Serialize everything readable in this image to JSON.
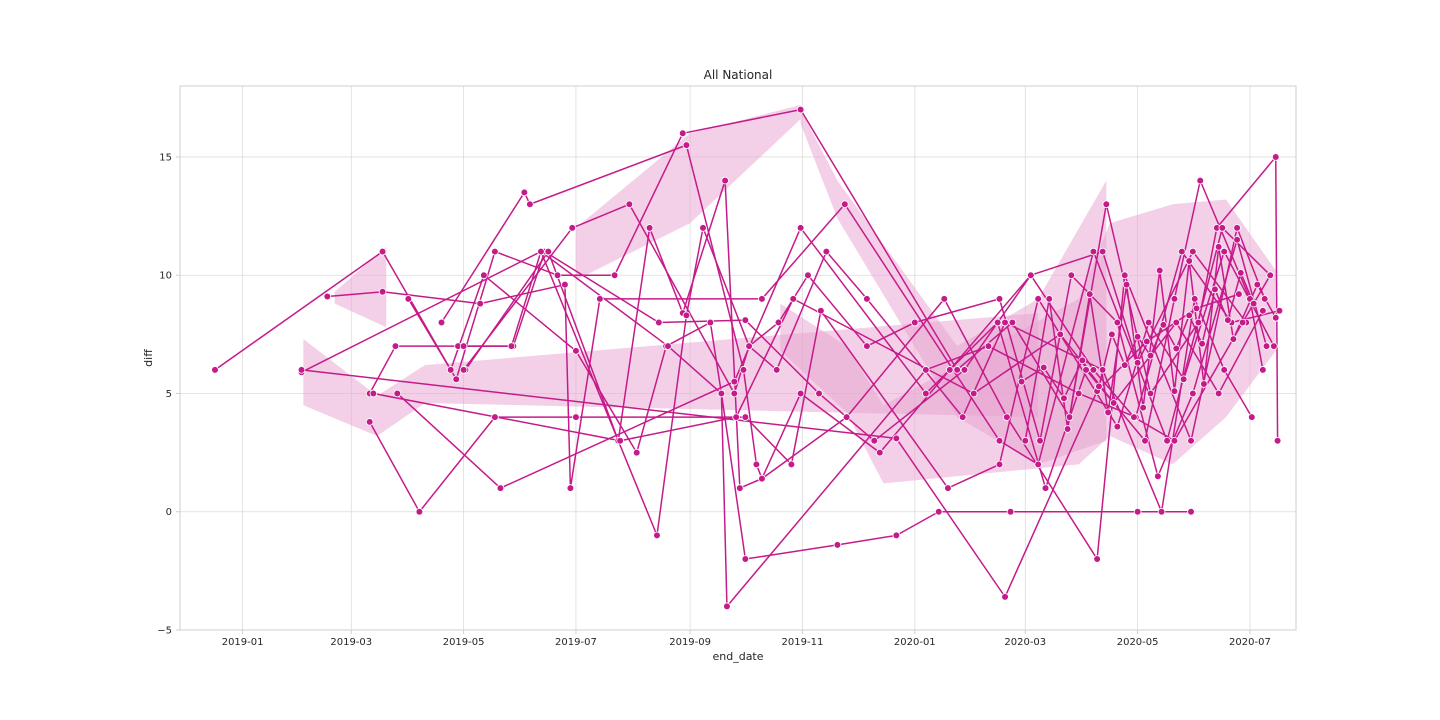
{
  "chart_data": {
    "type": "line",
    "title": "All National",
    "xlabel": "end_date",
    "ylabel": "diff",
    "x_type": "date",
    "xlim": [
      "2018-11-28",
      "2020-07-26"
    ],
    "ylim": [
      -5,
      18
    ],
    "x_ticks": [
      "2019-01-01",
      "2019-03-01",
      "2019-05-01",
      "2019-07-01",
      "2019-09-01",
      "2019-11-01",
      "2020-01-01",
      "2020-03-01",
      "2020-05-01",
      "2020-07-01"
    ],
    "x_tick_labels": [
      "2019-01",
      "2019-03",
      "2019-05",
      "2019-07",
      "2019-09",
      "2019-11",
      "2020-01",
      "2020-03",
      "2020-05",
      "2020-07"
    ],
    "y_ticks": [
      -5,
      0,
      5,
      10,
      15
    ],
    "y_tick_labels": [
      "−5",
      "0",
      "5",
      "10",
      "15"
    ],
    "grid": true,
    "legend": "none",
    "line_color": "#c51b8a",
    "band_color": "#e7a1cf",
    "series": [
      {
        "style": "line-with-markers",
        "points": [
          [
            "2018-12-17",
            6
          ],
          [
            "2019-03-18",
            11
          ],
          [
            "2019-04-27",
            5.6
          ],
          [
            "2019-05-18",
            11
          ],
          [
            "2019-06-21",
            10
          ],
          [
            "2019-07-22",
            10
          ],
          [
            "2019-08-28",
            16
          ],
          [
            "2019-10-31",
            17
          ],
          [
            "2020-01-24",
            6
          ],
          [
            "2020-02-23",
            8
          ],
          [
            "2020-03-25",
            4
          ],
          [
            "2020-04-14",
            13
          ],
          [
            "2020-05-08",
            5
          ],
          [
            "2020-06-03",
            8
          ],
          [
            "2020-06-13",
            12
          ],
          [
            "2020-07-15",
            15
          ],
          [
            "2020-07-16",
            3
          ]
        ]
      },
      {
        "style": "line-with-markers",
        "points": [
          [
            "2019-02-16",
            9.1
          ],
          [
            "2019-03-18",
            9.3
          ],
          [
            "2019-05-10",
            8.8
          ],
          [
            "2019-06-25",
            9.6
          ],
          [
            "2019-06-28",
            1
          ],
          [
            "2019-07-14",
            9
          ],
          [
            "2019-10-10",
            9
          ],
          [
            "2019-11-24",
            13
          ],
          [
            "2020-02-16",
            3
          ],
          [
            "2020-03-08",
            2
          ],
          [
            "2020-04-07",
            11
          ],
          [
            "2020-05-17",
            3
          ],
          [
            "2020-06-16",
            12
          ],
          [
            "2020-07-12",
            10
          ]
        ]
      },
      {
        "style": "line-with-markers",
        "points": [
          [
            "2019-03-11",
            3.8
          ],
          [
            "2019-04-07",
            0
          ],
          [
            "2019-05-18",
            4
          ],
          [
            "2019-07-01",
            4
          ],
          [
            "2019-10-01",
            4
          ],
          [
            "2019-10-26",
            2
          ],
          [
            "2019-11-11",
            8.5
          ],
          [
            "2020-01-19",
            1
          ],
          [
            "2020-02-16",
            2
          ],
          [
            "2020-03-08",
            9
          ],
          [
            "2020-04-20",
            3.6
          ],
          [
            "2020-05-07",
            8
          ],
          [
            "2020-05-26",
            5.6
          ],
          [
            "2020-06-17",
            11
          ],
          [
            "2020-07-14",
            7
          ]
        ]
      },
      {
        "style": "line-with-markers",
        "points": [
          [
            "2019-03-11",
            5
          ],
          [
            "2019-03-25",
            7
          ],
          [
            "2019-04-28",
            7
          ],
          [
            "2019-05-28",
            7
          ],
          [
            "2019-06-14",
            11
          ],
          [
            "2019-08-15",
            8
          ],
          [
            "2019-10-01",
            8.1
          ],
          [
            "2019-11-10",
            5
          ],
          [
            "2019-12-10",
            3
          ],
          [
            "2020-01-28",
            6
          ],
          [
            "2020-03-04",
            10
          ],
          [
            "2020-04-12",
            11
          ],
          [
            "2020-05-01",
            6.3
          ],
          [
            "2020-05-31",
            11
          ],
          [
            "2020-06-29",
            8
          ]
        ]
      },
      {
        "style": "line-with-markers",
        "points": [
          [
            "2019-03-26",
            5
          ],
          [
            "2019-05-21",
            1
          ],
          [
            "2019-09-25",
            5.5
          ],
          [
            "2019-10-31",
            12
          ],
          [
            "2020-01-07",
            5
          ],
          [
            "2020-02-15",
            8
          ],
          [
            "2020-03-12",
            1
          ],
          [
            "2020-04-03",
            6
          ],
          [
            "2020-05-05",
            3
          ],
          [
            "2020-05-21",
            9
          ],
          [
            "2020-06-04",
            14
          ],
          [
            "2020-07-01",
            9
          ],
          [
            "2020-07-08",
            6
          ]
        ]
      },
      {
        "style": "line-with-markers",
        "points": [
          [
            "2019-04-01",
            9
          ],
          [
            "2019-04-24",
            6
          ],
          [
            "2019-05-12",
            10
          ],
          [
            "2019-07-01",
            6.8
          ],
          [
            "2019-08-03",
            2.5
          ],
          [
            "2019-08-19",
            7
          ],
          [
            "2019-09-12",
            8
          ],
          [
            "2019-09-18",
            5
          ],
          [
            "2019-09-21",
            -4
          ],
          [
            "2020-01-07",
            6
          ],
          [
            "2020-02-10",
            7
          ],
          [
            "2020-03-30",
            5
          ],
          [
            "2020-04-30",
            4
          ],
          [
            "2020-05-25",
            11
          ],
          [
            "2020-06-21",
            8
          ],
          [
            "2020-07-17",
            8.5
          ]
        ]
      },
      {
        "style": "line-with-markers",
        "points": [
          [
            "2019-04-19",
            8
          ],
          [
            "2019-06-03",
            13.5
          ],
          [
            "2019-06-06",
            13
          ],
          [
            "2019-08-30",
            15.5
          ],
          [
            "2019-09-30",
            6
          ],
          [
            "2019-10-07",
            2
          ],
          [
            "2019-10-10",
            1.4
          ],
          [
            "2019-10-31",
            5
          ],
          [
            "2019-12-13",
            2.5
          ],
          [
            "2020-01-20",
            6
          ],
          [
            "2020-03-04",
            10
          ],
          [
            "2020-04-07",
            6
          ],
          [
            "2020-04-29",
            4
          ],
          [
            "2020-05-21",
            3
          ],
          [
            "2020-06-27",
            8
          ],
          [
            "2020-07-12",
            10
          ]
        ]
      },
      {
        "style": "line-with-markers",
        "points": [
          [
            "2019-05-02",
            6
          ],
          [
            "2019-06-16",
            11
          ],
          [
            "2019-07-24",
            3
          ],
          [
            "2019-08-10",
            12
          ],
          [
            "2019-08-28",
            8.4
          ],
          [
            "2019-09-20",
            14
          ],
          [
            "2019-09-28",
            1
          ],
          [
            "2019-10-10",
            1.4
          ],
          [
            "2019-11-25",
            4
          ],
          [
            "2020-01-17",
            9
          ],
          [
            "2020-02-20",
            4
          ],
          [
            "2020-04-09",
            -2
          ],
          [
            "2020-04-24",
            10
          ],
          [
            "2020-05-30",
            3
          ],
          [
            "2020-06-24",
            12
          ],
          [
            "2020-07-09",
            9
          ]
        ]
      },
      {
        "style": "line-with-markers",
        "points": [
          [
            "2019-05-01",
            7
          ],
          [
            "2019-05-27",
            7
          ],
          [
            "2019-06-12",
            11
          ],
          [
            "2019-08-14",
            -1
          ],
          [
            "2019-08-30",
            8.3
          ],
          [
            "2019-09-08",
            12
          ],
          [
            "2019-10-03",
            7
          ],
          [
            "2019-10-18",
            6
          ],
          [
            "2019-11-14",
            11
          ],
          [
            "2019-12-06",
            9
          ],
          [
            "2020-01-27",
            4
          ],
          [
            "2020-02-19",
            8
          ],
          [
            "2020-04-12",
            6
          ],
          [
            "2020-05-14",
            0
          ],
          [
            "2020-06-01",
            9
          ],
          [
            "2020-06-17",
            6
          ],
          [
            "2020-07-02",
            4
          ]
        ]
      },
      {
        "style": "line-with-markers",
        "points": [
          [
            "2019-05-01",
            6
          ],
          [
            "2019-06-29",
            12
          ],
          [
            "2019-07-30",
            13
          ],
          [
            "2019-09-25",
            5
          ],
          [
            "2019-10-03",
            7
          ],
          [
            "2019-10-19",
            8
          ],
          [
            "2019-11-04",
            10
          ],
          [
            "2019-12-06",
            7
          ],
          [
            "2020-01-01",
            8
          ],
          [
            "2020-02-16",
            9
          ],
          [
            "2020-03-09",
            3
          ],
          [
            "2020-03-26",
            10
          ],
          [
            "2020-04-20",
            8
          ],
          [
            "2020-05-12",
            1.5
          ],
          [
            "2020-05-31",
            5
          ],
          [
            "2020-06-24",
            11.5
          ],
          [
            "2020-07-10",
            7
          ]
        ]
      },
      {
        "style": "line-with-markers",
        "points": [
          [
            "2019-03-13",
            5
          ],
          [
            "2019-07-25",
            3
          ],
          [
            "2019-09-26",
            4
          ],
          [
            "2019-10-27",
            9
          ],
          [
            "2020-02-02",
            5
          ],
          [
            "2020-03-20",
            7.5
          ],
          [
            "2020-04-18",
            4.6
          ],
          [
            "2020-05-22",
            8
          ],
          [
            "2020-06-14",
            5
          ],
          [
            "2020-07-08",
            8.5
          ]
        ]
      },
      {
        "style": "line-with-markers",
        "points": [
          [
            "2019-02-02",
            5.9
          ],
          [
            "2019-06-12",
            11
          ],
          [
            "2019-08-20",
            7
          ],
          [
            "2019-09-18",
            5
          ],
          [
            "2019-10-01",
            -2
          ],
          [
            "2019-11-20",
            -1.4
          ],
          [
            "2019-12-22",
            -1
          ],
          [
            "2020-01-14",
            0
          ],
          [
            "2020-02-22",
            0
          ],
          [
            "2020-05-01",
            0
          ],
          [
            "2020-05-30",
            0
          ]
        ]
      },
      {
        "style": "line-with-markers",
        "points": [
          [
            "2019-02-02",
            6
          ],
          [
            "2019-12-22",
            3.1
          ],
          [
            "2020-02-19",
            -3.6
          ],
          [
            "2020-04-09",
            5.1
          ],
          [
            "2020-05-06",
            7.2
          ],
          [
            "2020-06-02",
            8.6
          ],
          [
            "2020-06-25",
            9.2
          ]
        ]
      },
      {
        "style": "line-with-markers",
        "points": [
          [
            "2020-02-28",
            5.5
          ],
          [
            "2020-03-11",
            6.1
          ],
          [
            "2020-03-22",
            4.8
          ],
          [
            "2020-04-01",
            6.4
          ],
          [
            "2020-04-10",
            5.3
          ],
          [
            "2020-04-17",
            7.5
          ],
          [
            "2020-04-24",
            6.2
          ],
          [
            "2020-05-01",
            7.4
          ],
          [
            "2020-05-08",
            6.6
          ],
          [
            "2020-05-15",
            7.9
          ],
          [
            "2020-05-22",
            6.9
          ],
          [
            "2020-05-29",
            8.3
          ],
          [
            "2020-06-05",
            7.1
          ],
          [
            "2020-06-12",
            9.4
          ],
          [
            "2020-06-19",
            8.1
          ],
          [
            "2020-06-26",
            10.1
          ],
          [
            "2020-07-03",
            8.8
          ]
        ]
      },
      {
        "style": "line-with-markers",
        "points": [
          [
            "2020-03-01",
            3
          ],
          [
            "2020-03-14",
            9
          ],
          [
            "2020-03-24",
            3.5
          ],
          [
            "2020-04-05",
            9.2
          ],
          [
            "2020-04-15",
            4.2
          ],
          [
            "2020-04-25",
            9.6
          ],
          [
            "2020-05-04",
            4.4
          ],
          [
            "2020-05-13",
            10.2
          ],
          [
            "2020-05-21",
            5.1
          ],
          [
            "2020-05-29",
            10.6
          ],
          [
            "2020-06-06",
            5.4
          ],
          [
            "2020-06-14",
            11.2
          ],
          [
            "2020-06-22",
            7.3
          ],
          [
            "2020-07-05",
            9.6
          ],
          [
            "2020-07-15",
            8.2
          ]
        ]
      }
    ],
    "bands": [
      {
        "points": [
          [
            "2019-02-20",
            9.3,
            8.8
          ],
          [
            "2019-03-20",
            11.2,
            7.8
          ]
        ]
      },
      {
        "points": [
          [
            "2019-02-03",
            7.3,
            4.5
          ],
          [
            "2019-03-15",
            4.9,
            3.2
          ],
          [
            "2019-04-10",
            6.2,
            4.6
          ],
          [
            "2020-03-08",
            8.4,
            4.0
          ]
        ]
      },
      {
        "points": [
          [
            "2019-07-01",
            12.0,
            9.8
          ],
          [
            "2019-09-01",
            16.0,
            12.2
          ],
          [
            "2019-10-31",
            17.2,
            16.6
          ]
        ]
      },
      {
        "points": [
          [
            "2019-10-31",
            17.0,
            16.4
          ],
          [
            "2019-11-20",
            14.0,
            12.4
          ],
          [
            "2020-01-24",
            7.0,
            4.0
          ],
          [
            "2020-03-08",
            9.0,
            2.0
          ],
          [
            "2020-04-14",
            14.0,
            3.0
          ]
        ]
      },
      {
        "points": [
          [
            "2019-10-20",
            8.8,
            6.8
          ],
          [
            "2019-11-25",
            7.0,
            4.2
          ],
          [
            "2019-12-15",
            4.5,
            1.2
          ],
          [
            "2020-03-30",
            9.0,
            2.0
          ],
          [
            "2020-04-16",
            12.2,
            3.2
          ],
          [
            "2020-05-20",
            13.0,
            2.0
          ],
          [
            "2020-06-18",
            13.2,
            4.0
          ],
          [
            "2020-07-15",
            10.2,
            6.8
          ]
        ]
      }
    ]
  }
}
